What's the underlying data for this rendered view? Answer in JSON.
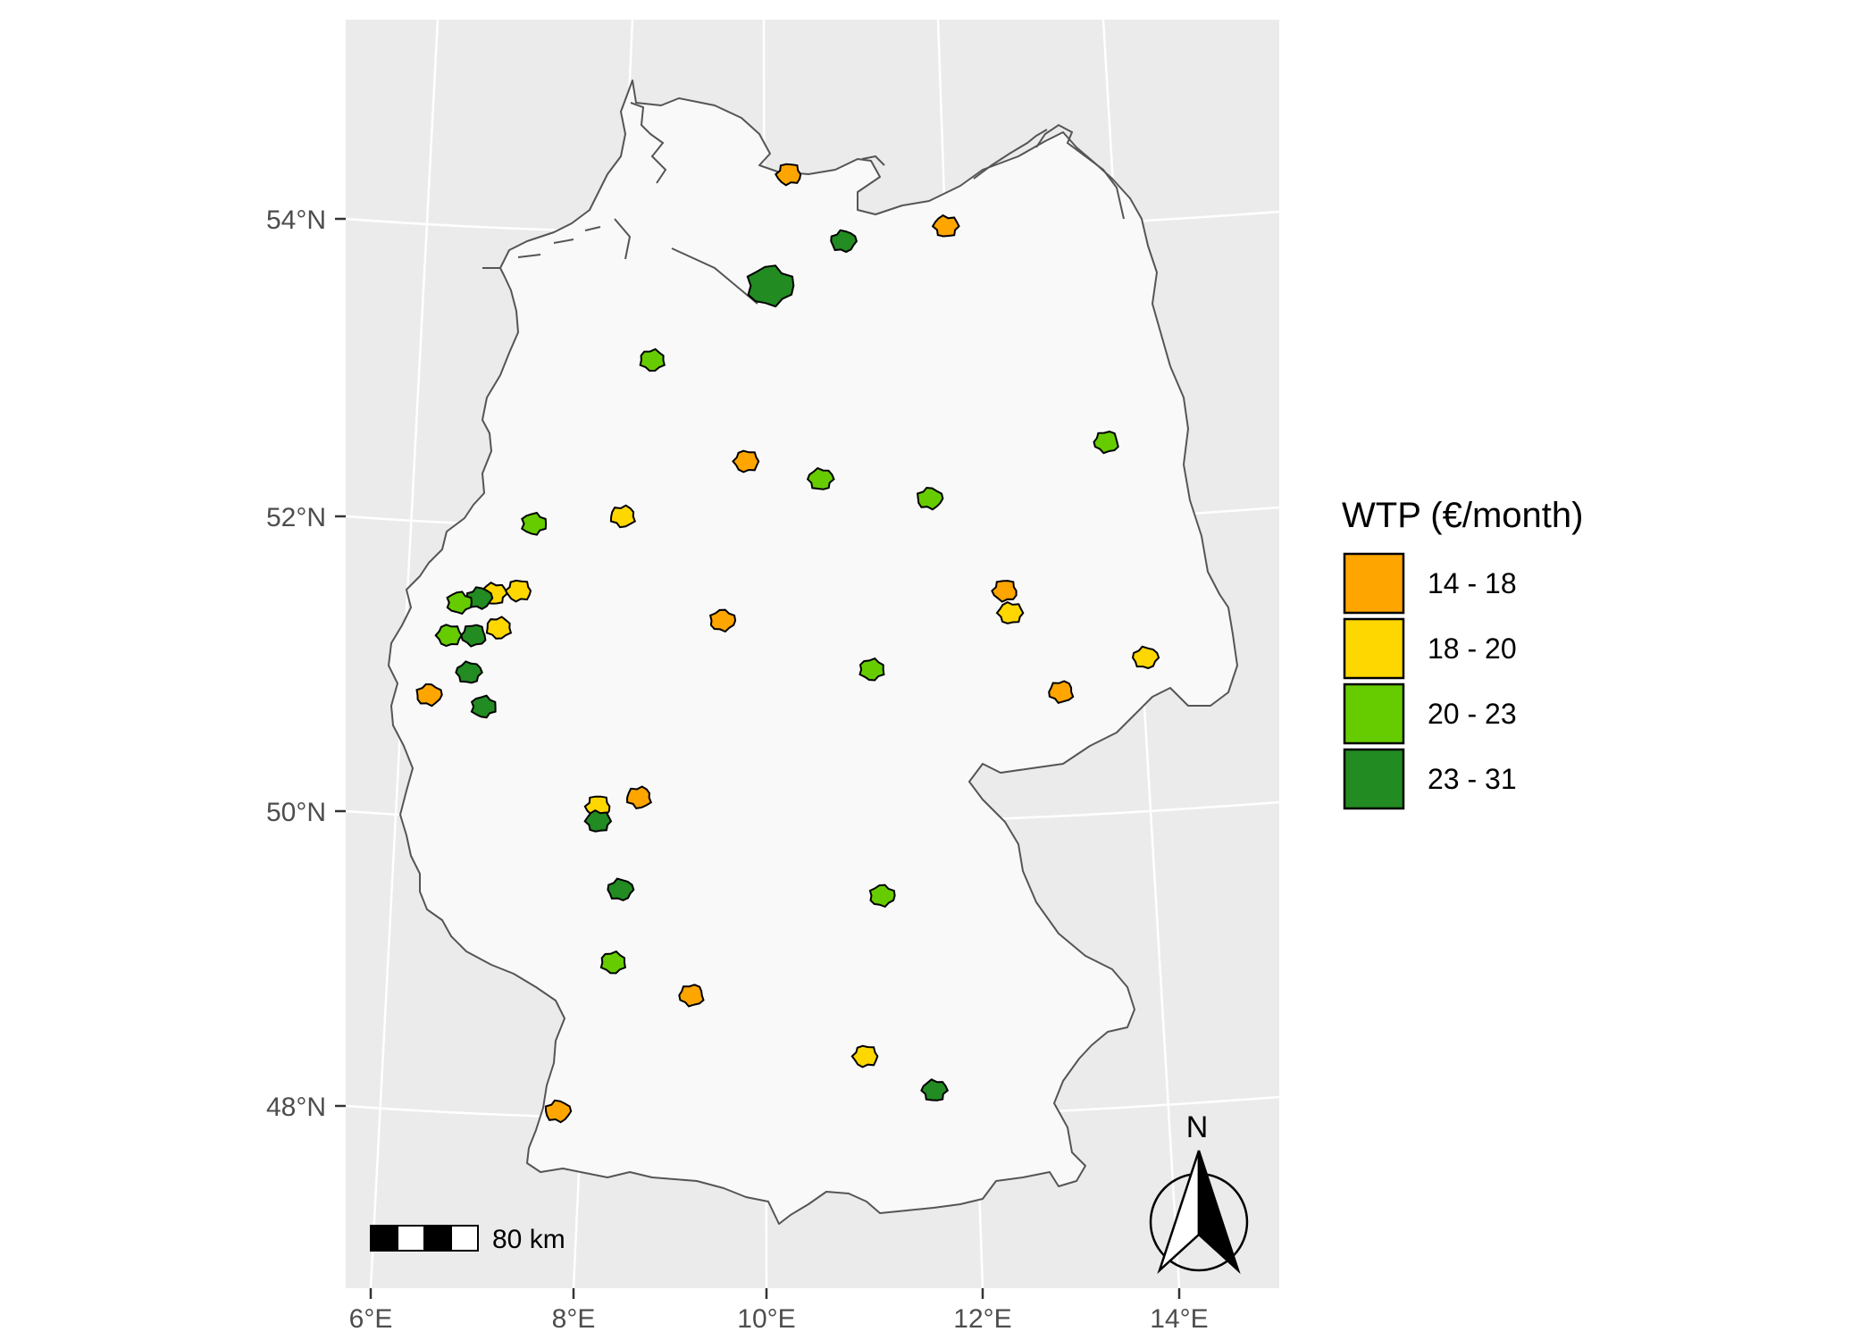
{
  "legend": {
    "title": "WTP (€/month)",
    "items": [
      {
        "label": "14 - 18",
        "color": "#FFA500"
      },
      {
        "label": "18 - 20",
        "color": "#FFD700"
      },
      {
        "label": "20 - 23",
        "color": "#66CC00"
      },
      {
        "label": "23 - 31",
        "color": "#228B22"
      }
    ]
  },
  "axes": {
    "lat_labels": [
      "54°N",
      "52°N",
      "50°N",
      "48°N"
    ],
    "lon_labels": [
      "6°E",
      "8°E",
      "10°E",
      "12°E",
      "14°E"
    ]
  },
  "scale_bar": {
    "label": "80 km"
  },
  "north_arrow": {
    "label": "N"
  },
  "colors": {
    "panel_bg": "#EBEBEB",
    "grid": "#FFFFFF",
    "country_fill": "#F9F9F9",
    "country_stroke": "#555555"
  },
  "cities": [
    {
      "lon": 10.2,
      "lat": 54.3,
      "wtp_class": 0
    },
    {
      "lon": 11.8,
      "lat": 53.95,
      "wtp_class": 0
    },
    {
      "lon": 10.75,
      "lat": 53.85,
      "wtp_class": 3
    },
    {
      "lon": 10.0,
      "lat": 53.55,
      "wtp_class": 3
    },
    {
      "lon": 8.8,
      "lat": 53.05,
      "wtp_class": 2
    },
    {
      "lon": 13.4,
      "lat": 52.5,
      "wtp_class": 2
    },
    {
      "lon": 9.75,
      "lat": 52.37,
      "wtp_class": 0
    },
    {
      "lon": 10.5,
      "lat": 52.25,
      "wtp_class": 2
    },
    {
      "lon": 11.6,
      "lat": 52.12,
      "wtp_class": 2
    },
    {
      "lon": 7.6,
      "lat": 51.95,
      "wtp_class": 2
    },
    {
      "lon": 8.5,
      "lat": 52.0,
      "wtp_class": 1
    },
    {
      "lon": 12.35,
      "lat": 51.5,
      "wtp_class": 0
    },
    {
      "lon": 12.4,
      "lat": 51.35,
      "wtp_class": 1
    },
    {
      "lon": 13.75,
      "lat": 51.05,
      "wtp_class": 1
    },
    {
      "lon": 9.5,
      "lat": 51.3,
      "wtp_class": 0
    },
    {
      "lon": 11.0,
      "lat": 50.97,
      "wtp_class": 2
    },
    {
      "lon": 12.9,
      "lat": 50.82,
      "wtp_class": 0
    },
    {
      "lon": 7.45,
      "lat": 51.5,
      "wtp_class": 1
    },
    {
      "lon": 7.2,
      "lat": 51.48,
      "wtp_class": 1
    },
    {
      "lon": 7.05,
      "lat": 51.45,
      "wtp_class": 3
    },
    {
      "lon": 6.85,
      "lat": 51.42,
      "wtp_class": 2
    },
    {
      "lon": 7.25,
      "lat": 51.25,
      "wtp_class": 1
    },
    {
      "lon": 7.0,
      "lat": 51.2,
      "wtp_class": 3
    },
    {
      "lon": 6.75,
      "lat": 51.2,
      "wtp_class": 2
    },
    {
      "lon": 6.95,
      "lat": 50.95,
      "wtp_class": 3
    },
    {
      "lon": 6.55,
      "lat": 50.8,
      "wtp_class": 0
    },
    {
      "lon": 7.1,
      "lat": 50.72,
      "wtp_class": 3
    },
    {
      "lon": 8.66,
      "lat": 50.11,
      "wtp_class": 0
    },
    {
      "lon": 8.25,
      "lat": 50.05,
      "wtp_class": 1
    },
    {
      "lon": 8.25,
      "lat": 49.95,
      "wtp_class": 3
    },
    {
      "lon": 8.47,
      "lat": 49.49,
      "wtp_class": 3
    },
    {
      "lon": 11.08,
      "lat": 49.45,
      "wtp_class": 2
    },
    {
      "lon": 8.4,
      "lat": 49.0,
      "wtp_class": 2
    },
    {
      "lon": 9.18,
      "lat": 48.78,
      "wtp_class": 0
    },
    {
      "lon": 10.9,
      "lat": 48.37,
      "wtp_class": 1
    },
    {
      "lon": 11.58,
      "lat": 48.14,
      "wtp_class": 3
    },
    {
      "lon": 7.85,
      "lat": 48.0,
      "wtp_class": 0
    }
  ]
}
